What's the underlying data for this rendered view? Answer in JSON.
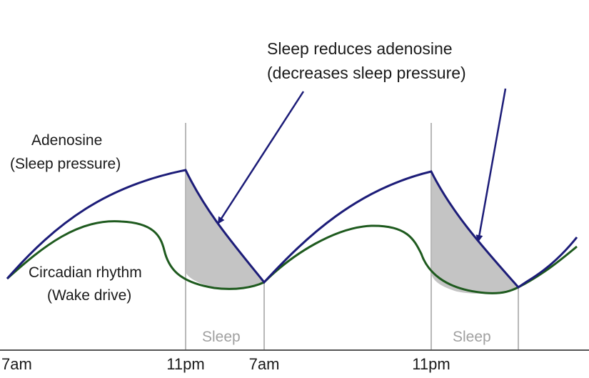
{
  "annotation": {
    "line1": "Sleep reduces adenosine",
    "line2": "(decreases sleep pressure)"
  },
  "adenosine_label": {
    "line1": "Adenosine",
    "line2": "(Sleep pressure)"
  },
  "circadian_label": {
    "line1": "Circadian rhythm",
    "line2": "(Wake drive)"
  },
  "sleep_periods": [
    "Sleep",
    "Sleep"
  ],
  "time_axis": [
    "7am",
    "11pm",
    "7am",
    "11pm"
  ],
  "colors": {
    "adenosine": "#1c1c78",
    "circadian": "#1e5a1e",
    "sleep_fill": "#c4c4c4",
    "guide_line": "#b8b8b8",
    "axis": "#555555"
  }
}
